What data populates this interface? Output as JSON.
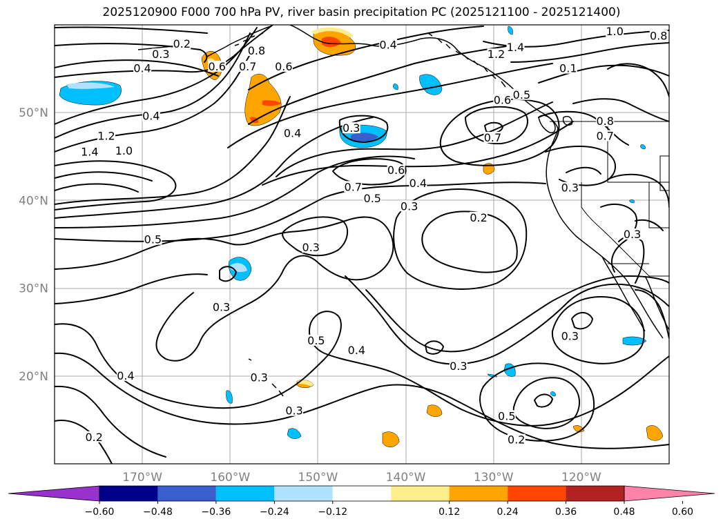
{
  "title": "2025120900 F000 700 hPa PV, river basin precipitation PC (2025121100 - 2025121400)",
  "map": {
    "lon_range": [
      -180,
      -110
    ],
    "lat_range": [
      10,
      60
    ],
    "lat_labels": [
      {
        "lat": 50,
        "text": "50°N"
      },
      {
        "lat": 40,
        "text": "40°N"
      },
      {
        "lat": 30,
        "text": "30°N"
      },
      {
        "lat": 20,
        "text": "20°N"
      }
    ],
    "lon_labels": [
      {
        "lon": -170,
        "text": "170°W"
      },
      {
        "lon": -160,
        "text": "160°W"
      },
      {
        "lon": -150,
        "text": "150°W"
      },
      {
        "lon": -140,
        "text": "140°W"
      },
      {
        "lon": -130,
        "text": "130°W"
      },
      {
        "lon": -120,
        "text": "120°W"
      }
    ]
  },
  "contour_labels": [
    {
      "text": "0.2",
      "lon": -165.5,
      "lat": 57.8
    },
    {
      "text": "0.3",
      "lon": -167.9,
      "lat": 56.6
    },
    {
      "text": "0.4",
      "lon": -170.0,
      "lat": 55.0
    },
    {
      "text": "0.4",
      "lon": -169.0,
      "lat": 49.6
    },
    {
      "text": "1.4",
      "lon": -176.0,
      "lat": 45.5
    },
    {
      "text": "1.2",
      "lon": -174.1,
      "lat": 47.3
    },
    {
      "text": "1.0",
      "lon": -172.1,
      "lat": 45.6
    },
    {
      "text": "0.6",
      "lon": -161.5,
      "lat": 55.2
    },
    {
      "text": "0.7",
      "lon": -158.0,
      "lat": 55.2
    },
    {
      "text": "0.8",
      "lon": -157.0,
      "lat": 57.0
    },
    {
      "text": "0.6",
      "lon": -153.9,
      "lat": 55.2
    },
    {
      "text": "0.4",
      "lon": -152.9,
      "lat": 47.6
    },
    {
      "text": "0.4",
      "lon": -142.0,
      "lat": 57.7
    },
    {
      "text": "0.3",
      "lon": -146.2,
      "lat": 48.2
    },
    {
      "text": "0.6",
      "lon": -141.1,
      "lat": 43.4
    },
    {
      "text": "0.7",
      "lon": -146.0,
      "lat": 41.5
    },
    {
      "text": "0.5",
      "lon": -143.8,
      "lat": 40.2
    },
    {
      "text": "0.4",
      "lon": -138.6,
      "lat": 41.9
    },
    {
      "text": "0.3",
      "lon": -139.6,
      "lat": 39.3
    },
    {
      "text": "0.2",
      "lon": -131.7,
      "lat": 38.0
    },
    {
      "text": "0.5",
      "lon": -168.8,
      "lat": 35.5
    },
    {
      "text": "0.3",
      "lon": -150.8,
      "lat": 34.6
    },
    {
      "text": "0.3",
      "lon": -161.0,
      "lat": 27.8
    },
    {
      "text": "0.5",
      "lon": -150.2,
      "lat": 24.0
    },
    {
      "text": "0.4",
      "lon": -145.6,
      "lat": 22.9
    },
    {
      "text": "0.4",
      "lon": -171.9,
      "lat": 20.0
    },
    {
      "text": "0.3",
      "lon": -156.7,
      "lat": 19.8
    },
    {
      "text": "0.3",
      "lon": -152.7,
      "lat": 16.0
    },
    {
      "text": "0.3",
      "lon": -134.0,
      "lat": 21.1
    },
    {
      "text": "0.5",
      "lon": -128.5,
      "lat": 15.4
    },
    {
      "text": "0.2",
      "lon": -127.4,
      "lat": 12.7
    },
    {
      "text": "0.2",
      "lon": -175.5,
      "lat": 13.0
    },
    {
      "text": "0.3",
      "lon": -121.3,
      "lat": 24.5
    },
    {
      "text": "1.2",
      "lon": -129.7,
      "lat": 56.6
    },
    {
      "text": "1.4",
      "lon": -127.5,
      "lat": 57.4
    },
    {
      "text": "1.0",
      "lon": -116.2,
      "lat": 59.2
    },
    {
      "text": "0.8",
      "lon": -111.2,
      "lat": 58.7
    },
    {
      "text": "0.1",
      "lon": -121.5,
      "lat": 55.0
    },
    {
      "text": "0.6",
      "lon": -129.0,
      "lat": 51.4
    },
    {
      "text": "0.5",
      "lon": -126.8,
      "lat": 52.0
    },
    {
      "text": "0.8",
      "lon": -117.3,
      "lat": 49.0
    },
    {
      "text": "0.7",
      "lon": -117.3,
      "lat": 47.3
    },
    {
      "text": "0.7",
      "lon": -130.1,
      "lat": 47.1
    },
    {
      "text": "0.3",
      "lon": -121.3,
      "lat": 41.4
    },
    {
      "text": "0.3",
      "lon": -114.2,
      "lat": 36.1
    }
  ],
  "colorbar": {
    "colors": [
      "#9932CC",
      "#00008B",
      "#3A5FCD",
      "#00BFFF",
      "#B0E2FF",
      "#FFFFFF",
      "#FFEC8B",
      "#FFA500",
      "#FF4500",
      "#B22222",
      "#FF82AB"
    ],
    "tick_labels": [
      "−0.60",
      "−0.48",
      "−0.36",
      "−0.24",
      "−0.12",
      "0.12",
      "0.24",
      "0.36",
      "0.48",
      "0.60"
    ]
  }
}
